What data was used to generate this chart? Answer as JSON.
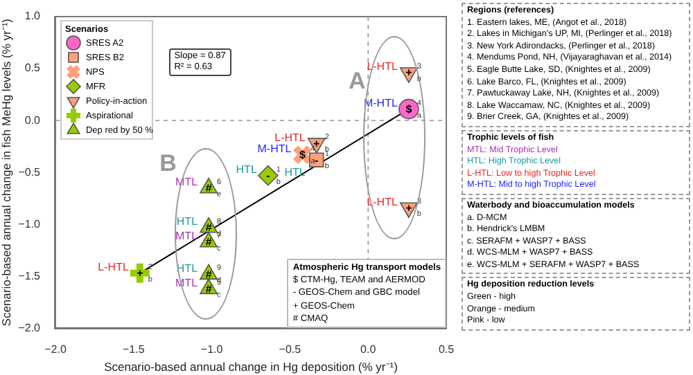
{
  "chart_data": {
    "type": "scatter",
    "xlabel": "Scenario-based annual change in Hg deposition (% yr⁻¹)",
    "ylabel": "Scenario-based annual change in fish MeHg levels (% yr⁻¹)",
    "xlim": [
      -2.0,
      0.5
    ],
    "ylim": [
      -2.0,
      1.0
    ],
    "xticks": [
      {
        "value": -2,
        "label": "−2.0"
      },
      {
        "value": -1.5,
        "label": "−1.5"
      },
      {
        "value": -1,
        "label": "−1.0"
      },
      {
        "value": -0.5,
        "label": "−0.5"
      },
      {
        "value": 0,
        "label": "0.0"
      },
      {
        "value": 0.5,
        "label": "0.5"
      }
    ],
    "yticks": [
      {
        "value": -2,
        "label": "−2.0"
      },
      {
        "value": -1.5,
        "label": "−1.5"
      },
      {
        "value": -1,
        "label": "−1.0"
      },
      {
        "value": -0.5,
        "label": "−0.5"
      },
      {
        "value": 0,
        "label": "0.0"
      },
      {
        "value": 0.5,
        "label": "0.5"
      },
      {
        "value": 1,
        "label": "1.0"
      }
    ],
    "grid": false,
    "legend": "top left",
    "legend_title": "Scenarios",
    "ref_lines": [
      {
        "axis": "x",
        "value": 0,
        "color": "#999999",
        "line_style": "dashed"
      },
      {
        "axis": "y",
        "value": 0,
        "color": "#a3a3a3",
        "line_style": "dashed"
      }
    ],
    "series": [
      {
        "name": "SRES A2",
        "color": "#ff66cc",
        "marker": "circle",
        "x": [
          0.26
        ],
        "values": [
          0.11
        ]
      },
      {
        "name": "SRES B2",
        "color": "#ffa07a",
        "marker": "square",
        "x": [
          -0.33
        ],
        "values": [
          -0.38
        ]
      },
      {
        "name": "NPS",
        "color": "#ffa07a",
        "marker": "x",
        "x": [
          -0.42
        ],
        "values": [
          -0.33
        ]
      },
      {
        "name": "MFR",
        "color": "#99cc00",
        "marker": "diamond",
        "x": [
          -0.64
        ],
        "values": [
          -0.53
        ]
      },
      {
        "name": "Policy-in-action",
        "color": "#ffa07a",
        "marker": "triangle-down",
        "x": [
          0.26,
          0.26,
          -0.33
        ],
        "values": [
          0.46,
          -0.84,
          -0.22
        ]
      },
      {
        "name": "Aspirational",
        "color": "#99cc00",
        "marker": "cross",
        "x": [
          -1.46
        ],
        "values": [
          -1.47
        ]
      },
      {
        "name": "Dep red by 50 %",
        "color": "#99cc00",
        "marker": "triangle",
        "x": [
          -1.02,
          -1.02,
          -1.02,
          -1.02,
          -1.02
        ],
        "values": [
          -0.65,
          -1.03,
          -1.17,
          -1.48,
          -1.62
        ]
      },
      {
        "type": "line",
        "color": "#000000",
        "marker": "none",
        "x": [
          -1.46,
          0.26
        ],
        "values": [
          -1.47,
          0.11
        ]
      }
    ],
    "annotations": [
      {
        "text": "M-HTL",
        "x": 0.26,
        "y": 0.11
      },
      {
        "text": "$",
        "x": 0.26,
        "y": 0.11
      },
      {
        "text": "4",
        "x": 0.26,
        "y": 0.11
      },
      {
        "text": "a",
        "x": 0.26,
        "y": 0.11
      },
      {
        "text": "L-HTL",
        "x": 0.26,
        "y": 0.46
      },
      {
        "text": "+",
        "x": 0.26,
        "y": 0.46
      },
      {
        "text": "3",
        "x": 0.26,
        "y": 0.46
      },
      {
        "text": "b",
        "x": 0.26,
        "y": 0.46
      },
      {
        "text": "L-HTL",
        "x": 0.26,
        "y": -0.84
      },
      {
        "text": "+",
        "x": 0.26,
        "y": -0.84
      },
      {
        "text": "3",
        "x": 0.26,
        "y": -0.84
      },
      {
        "text": "b",
        "x": 0.26,
        "y": -0.84
      },
      {
        "text": "L-HTL",
        "x": -0.33,
        "y": -0.22
      },
      {
        "text": "+",
        "x": -0.33,
        "y": -0.22
      },
      {
        "text": "2",
        "x": -0.33,
        "y": -0.22
      },
      {
        "text": "b",
        "x": -0.33,
        "y": -0.22
      },
      {
        "text": "M-HTL",
        "x": -0.42,
        "y": -0.33
      },
      {
        "text": "$",
        "x": -0.42,
        "y": -0.33
      },
      {
        "text": "4",
        "x": -0.42,
        "y": -0.33
      },
      {
        "text": "a",
        "x": -0.42,
        "y": -0.33
      },
      {
        "text": "HTL",
        "x": -0.33,
        "y": -0.38
      },
      {
        "text": "-",
        "x": -0.33,
        "y": -0.38
      },
      {
        "text": "1",
        "x": -0.33,
        "y": -0.38
      },
      {
        "text": "b",
        "x": -0.33,
        "y": -0.38
      },
      {
        "text": "HTL",
        "x": -0.64,
        "y": -0.53
      },
      {
        "text": "-",
        "x": -0.64,
        "y": -0.53
      },
      {
        "text": "1",
        "x": -0.64,
        "y": -0.53
      },
      {
        "text": "b",
        "x": -0.64,
        "y": -0.53
      },
      {
        "text": "L-HTL",
        "x": -1.46,
        "y": -1.47
      },
      {
        "text": "+",
        "x": -1.46,
        "y": -1.47
      },
      {
        "text": "2",
        "x": -1.46,
        "y": -1.47
      },
      {
        "text": "b",
        "x": -1.46,
        "y": -1.47
      },
      {
        "text": "MTL",
        "x": -1.02,
        "y": -0.65
      },
      {
        "text": "#",
        "x": -1.02,
        "y": -0.65
      },
      {
        "text": "6",
        "x": -1.02,
        "y": -0.65
      },
      {
        "text": "e",
        "x": -1.02,
        "y": -0.65
      },
      {
        "text": "HTL",
        "x": -1.02,
        "y": -1.03
      },
      {
        "text": "#",
        "x": -1.02,
        "y": -1.03
      },
      {
        "text": "8",
        "x": -1.02,
        "y": -1.03
      },
      {
        "text": "d",
        "x": -1.02,
        "y": -1.03
      },
      {
        "text": "MTL",
        "x": -1.02,
        "y": -1.17
      },
      {
        "text": "#",
        "x": -1.02,
        "y": -1.17
      },
      {
        "text": "7",
        "x": -1.02,
        "y": -1.17
      },
      {
        "text": "c",
        "x": -1.02,
        "y": -1.17
      },
      {
        "text": "HTL",
        "x": -1.02,
        "y": -1.48
      },
      {
        "text": "#",
        "x": -1.02,
        "y": -1.48
      },
      {
        "text": "9",
        "x": -1.02,
        "y": -1.48
      },
      {
        "text": "d",
        "x": -1.02,
        "y": -1.48
      },
      {
        "text": "MTL",
        "x": -1.02,
        "y": -1.62
      },
      {
        "text": "#",
        "x": -1.02,
        "y": -1.62
      },
      {
        "text": "5",
        "x": -1.02,
        "y": -1.62
      },
      {
        "text": "c",
        "x": -1.02,
        "y": -1.62
      },
      "A",
      "B",
      "Slope = 0.87",
      "R² = 0.63",
      "Atmospheric Hg transport models",
      "$ CTM-Hg, TEAM and AERMOD",
      "-  GEOS-Chem and GBC model",
      "+ GEOS-Chem",
      "# CMAQ",
      "Regions (references)",
      "1. Eastern lakes, ME, (Angot et al., 2018)",
      "2. Lakes in Michigan's UP, MI, (Perlinger et al., 2018)",
      "3. New York Adirondacks, (Perlinger et al., 2018)",
      "4. Mendums Pond, NH, (Vijayaraghavan et al., 2014)",
      "5. Eagle Butte Lake, SD, (Knightes et al., 2009)",
      "6. Lake Barco, FL, (Knightes et al., 2009)",
      "7. Pawtuckaway Lake, NH, (Knightes et al., 2009)",
      "8. Lake Waccamaw, NC, (Knightes et al., 2009)",
      "9. Brier Creek, GA, (Knightes et al., 2009)",
      "Trophic levels of fish",
      "MTL: Mid Trophic Level",
      "HTL: High Trophic Level",
      "L-HTL: Low to high Trophic Level",
      "M-HTL: Mid to high Trophic Level",
      "Waterbody and bioaccumulation models",
      "a. D-MCM",
      "b. Hendrick's LMBM",
      "c. SERAFM + WASP7 + BASS",
      "d. WCS-MLM + WASP7 + BASS",
      "e. WCS-MLM + SERAFM + WASP7 + BASS",
      "Hg deposition reduction levels",
      "Green - high",
      "Orange - medium",
      "Pink - low"
    ]
  }
}
